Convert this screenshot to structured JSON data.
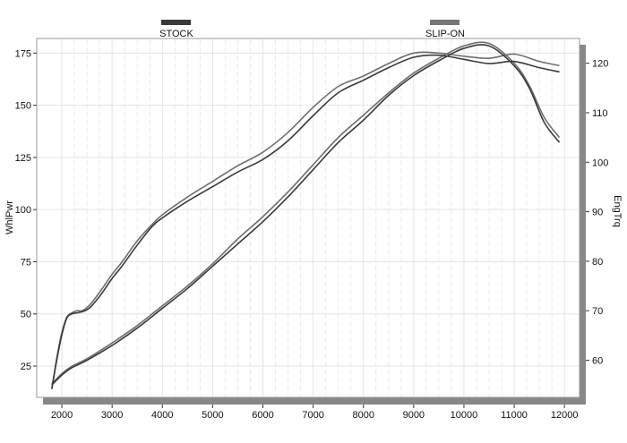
{
  "chart_data": {
    "type": "line",
    "xlabel": "",
    "ylabel_left": "WhlPwr",
    "ylabel_right": "EngTrq",
    "xlim": [
      1500,
      12300
    ],
    "ylim_left": [
      10,
      182
    ],
    "ylim_right": [
      52.5,
      125
    ],
    "x_ticks": [
      2000,
      3000,
      4000,
      5000,
      6000,
      7000,
      8000,
      9000,
      10000,
      11000,
      12000
    ],
    "y_ticks_left": [
      25,
      50,
      75,
      100,
      125,
      150,
      175
    ],
    "y_ticks_right": [
      60,
      70,
      80,
      90,
      100,
      110,
      120
    ],
    "grid": true,
    "legend_position": "top",
    "series": [
      {
        "name": "STOCK",
        "color": "#3a3a3a",
        "legend_color": "#3a3a3a",
        "power": {
          "x": [
            1800,
            1900,
            2000,
            2100,
            2200,
            2300,
            2400,
            2500,
            2600,
            2800,
            3000,
            3200,
            3500,
            3800,
            4000,
            4500,
            5000,
            5500,
            6000,
            6500,
            7000,
            7500,
            8000,
            8500,
            9000,
            9500,
            10000,
            10500,
            11000,
            11500,
            11900
          ],
          "y": [
            14,
            28,
            40,
            48,
            50,
            50.5,
            51,
            52,
            54,
            60,
            67,
            73,
            83,
            92,
            96,
            104,
            111,
            118,
            124,
            133,
            145,
            156,
            162,
            168,
            173,
            174,
            172,
            170,
            171,
            168,
            166
          ]
        },
        "torque": {
          "x": [
            1800,
            2000,
            2200,
            2500,
            3000,
            3500,
            4000,
            4500,
            5000,
            5500,
            6000,
            6500,
            7000,
            7500,
            8000,
            8500,
            9000,
            9500,
            10000,
            10500,
            11000,
            11300,
            11600,
            11900
          ],
          "y": [
            55,
            57,
            58.5,
            60,
            63,
            66.5,
            70.5,
            74.5,
            79,
            83.5,
            88,
            93,
            98.5,
            104,
            108.5,
            113.5,
            117.5,
            120.5,
            123,
            123.5,
            119.5,
            115,
            108,
            104
          ]
        }
      },
      {
        "name": "SLIP-ON",
        "color": "#6e6e6e",
        "legend_color": "#777777",
        "power": {
          "x": [
            1800,
            1900,
            2000,
            2100,
            2200,
            2300,
            2400,
            2500,
            2600,
            2800,
            3000,
            3200,
            3500,
            3800,
            4000,
            4500,
            5000,
            5500,
            6000,
            6500,
            7000,
            7500,
            8000,
            8500,
            9000,
            9500,
            10000,
            10500,
            11000,
            11500,
            11900
          ],
          "y": [
            14,
            29,
            41,
            48.5,
            50.5,
            51.5,
            51.5,
            53,
            55.5,
            62,
            69,
            75,
            85,
            93,
            97.5,
            106,
            113.5,
            121,
            127.5,
            137,
            149,
            159,
            164,
            170,
            175,
            175,
            173.5,
            172.5,
            174.5,
            171,
            169
          ]
        },
        "torque": {
          "x": [
            1800,
            2000,
            2200,
            2500,
            3000,
            3500,
            4000,
            4500,
            5000,
            5500,
            6000,
            6500,
            7000,
            7500,
            8000,
            8500,
            9000,
            9500,
            10000,
            10500,
            11000,
            11300,
            11600,
            11900
          ],
          "y": [
            55.2,
            57.3,
            58.8,
            60.3,
            63.5,
            67,
            71,
            75,
            79.5,
            84.5,
            89,
            94,
            99.5,
            105,
            109.5,
            114,
            118,
            121,
            123.5,
            124,
            120,
            115.5,
            109,
            105
          ]
        }
      }
    ]
  }
}
